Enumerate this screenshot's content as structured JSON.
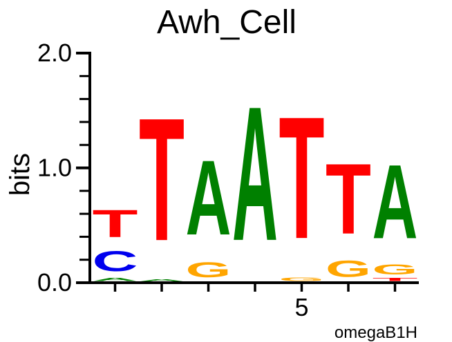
{
  "title": "Awh_Cell",
  "ylabel": "bits",
  "attribution": "omegaB1H",
  "colors": {
    "A": "#008000",
    "C": "#0000EE",
    "G": "#FFA500",
    "T": "#FF0000",
    "axis": "#000000",
    "text": "#000000"
  },
  "yaxis": {
    "ticks": [
      {
        "value": 0.0,
        "label": "0.0"
      },
      {
        "value": 1.0,
        "label": "1.0"
      },
      {
        "value": 2.0,
        "label": "2.0"
      }
    ],
    "minor_step": 0.2,
    "ylim": [
      0.0,
      2.0
    ]
  },
  "xaxis": {
    "labeled_tick_position": 5,
    "labeled_tick_text": "5",
    "num_positions": 7
  },
  "chart_data": {
    "type": "sequence_logo",
    "title": "Awh_Cell",
    "ylabel": "bits",
    "ylim": [
      0.0,
      2.0
    ],
    "x_positions": [
      1,
      2,
      3,
      4,
      5,
      6,
      7
    ],
    "positions": [
      {
        "position": 1,
        "stack_bottom_to_top": [
          {
            "letter": "A",
            "bits": 0.04
          },
          {
            "letter": "C",
            "bits": 0.28
          },
          {
            "letter": "T",
            "bits": 0.38
          }
        ]
      },
      {
        "position": 2,
        "stack_bottom_to_top": [
          {
            "letter": "A",
            "bits": 0.03
          },
          {
            "letter": "T",
            "bits": 1.71
          }
        ]
      },
      {
        "position": 3,
        "stack_bottom_to_top": [
          {
            "letter": "G",
            "bits": 0.21
          },
          {
            "letter": "A",
            "bits": 1.04
          }
        ]
      },
      {
        "position": 4,
        "stack_bottom_to_top": [
          {
            "letter": "A",
            "bits": 1.87
          }
        ]
      },
      {
        "position": 5,
        "stack_bottom_to_top": [
          {
            "letter": "G",
            "bits": 0.05
          },
          {
            "letter": "T",
            "bits": 1.7
          }
        ]
      },
      {
        "position": 6,
        "stack_bottom_to_top": [
          {
            "letter": "G",
            "bits": 0.23
          },
          {
            "letter": "T",
            "bits": 0.98
          }
        ]
      },
      {
        "position": 7,
        "stack_bottom_to_top": [
          {
            "letter": "T",
            "bits": 0.04
          },
          {
            "letter": "G",
            "bits": 0.14
          },
          {
            "letter": "A",
            "bits": 1.03
          }
        ]
      }
    ]
  }
}
